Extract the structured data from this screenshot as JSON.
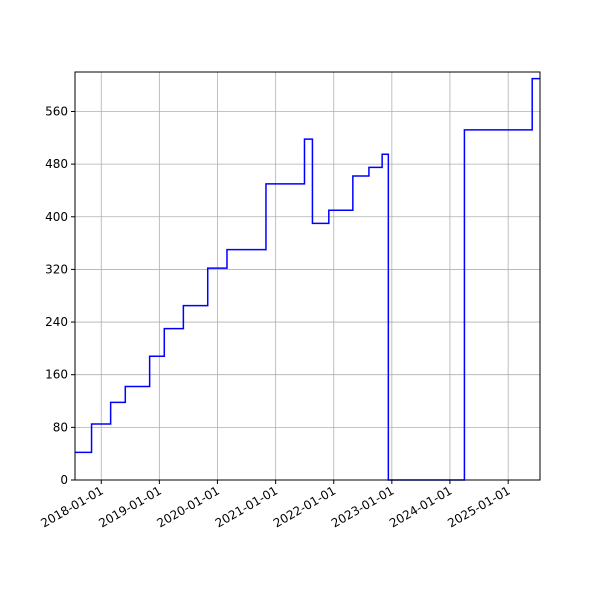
{
  "chart_data": {
    "type": "line",
    "title": "",
    "xlabel": "",
    "ylabel": "",
    "x_scale": "date",
    "xlim": [
      "2017-07-20",
      "2025-07-20"
    ],
    "ylim": [
      0,
      620
    ],
    "grid": true,
    "line_color": "#0000ff",
    "step": "post",
    "x_ticks": [
      {
        "value": "2018-01-01",
        "label": "2018-01-01"
      },
      {
        "value": "2019-01-01",
        "label": "2019-01-01"
      },
      {
        "value": "2020-01-01",
        "label": "2020-01-01"
      },
      {
        "value": "2021-01-01",
        "label": "2021-01-01"
      },
      {
        "value": "2022-01-01",
        "label": "2022-01-01"
      },
      {
        "value": "2023-01-01",
        "label": "2023-01-01"
      },
      {
        "value": "2024-01-01",
        "label": "2024-01-01"
      },
      {
        "value": "2025-01-01",
        "label": "2025-01-01"
      }
    ],
    "y_ticks": [
      {
        "value": 0,
        "label": "0"
      },
      {
        "value": 80,
        "label": "80"
      },
      {
        "value": 160,
        "label": "160"
      },
      {
        "value": 240,
        "label": "240"
      },
      {
        "value": 320,
        "label": "320"
      },
      {
        "value": 400,
        "label": "400"
      },
      {
        "value": 480,
        "label": "480"
      },
      {
        "value": 560,
        "label": "560"
      }
    ],
    "series": [
      {
        "x": [
          "2017-07-20",
          "2017-11-01",
          "2018-03-01",
          "2018-06-01",
          "2018-11-01",
          "2019-02-01",
          "2019-06-01",
          "2019-11-01",
          "2020-03-01",
          "2020-11-01",
          "2021-07-01",
          "2021-08-20",
          "2021-12-01",
          "2022-05-01",
          "2022-08-10",
          "2022-11-01",
          "2022-12-10",
          "2023-01-01",
          "2024-04-01",
          "2025-06-01",
          "2025-07-20"
        ],
        "y": [
          42,
          85,
          118,
          142,
          188,
          230,
          265,
          322,
          350,
          450,
          518,
          390,
          410,
          462,
          475,
          495,
          0,
          0,
          532,
          610,
          610
        ]
      }
    ]
  }
}
